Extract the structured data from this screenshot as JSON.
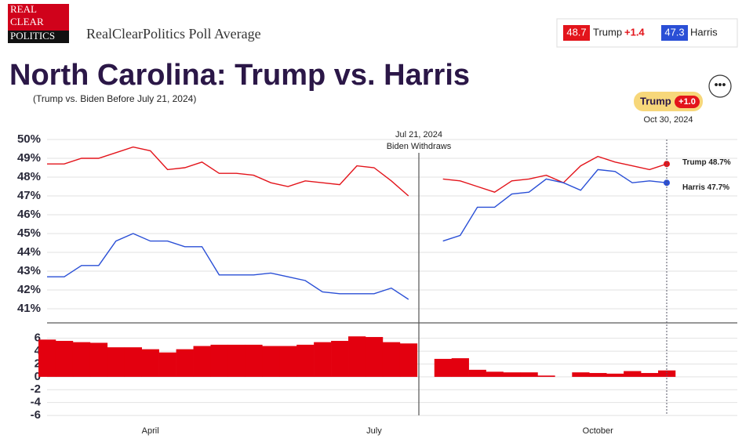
{
  "header": {
    "logo": [
      "REAL",
      "CLEAR",
      "POLITICS"
    ],
    "site": "RealClearPolitics Poll Average",
    "box": {
      "trump_value": "48.7",
      "trump_name": "Trump",
      "trump_spread": "+1.4",
      "harris_value": "47.3",
      "harris_name": "Harris"
    },
    "badge": {
      "name": "Trump",
      "spread": "+1.0",
      "date": "Oct 30, 2024"
    }
  },
  "chart_data": [
    {
      "type": "line",
      "title": "North Carolina: Trump vs. Harris",
      "subtitle": "(Trump vs. Biden Before July 21, 2024)",
      "annotations": [
        "Jul 21, 2024",
        "Biden Withdraws"
      ],
      "end_labels": [
        "Trump 48.7%",
        "Harris 47.7%"
      ],
      "series": [
        {
          "name": "Trump",
          "color": "#e3141b",
          "values": [
            48.7,
            48.7,
            49.0,
            49.0,
            49.3,
            49.6,
            49.4,
            48.4,
            48.5,
            48.8,
            48.2,
            48.2,
            48.1,
            47.7,
            47.5,
            47.8,
            47.7,
            47.6,
            48.6,
            48.5,
            47.8,
            47.0,
            null,
            47.9,
            47.8,
            47.5,
            47.2,
            47.8,
            47.9,
            48.1,
            47.7,
            48.6,
            49.1,
            48.8,
            48.6,
            48.4,
            48.7
          ]
        },
        {
          "name": "Harris",
          "color": "#2a4fd6",
          "values": [
            42.7,
            42.7,
            43.3,
            43.3,
            44.6,
            45.0,
            44.6,
            44.6,
            44.3,
            44.3,
            42.8,
            42.8,
            42.8,
            42.9,
            42.7,
            42.5,
            41.9,
            41.8,
            41.8,
            41.8,
            42.1,
            41.5,
            null,
            44.6,
            44.9,
            46.4,
            46.4,
            47.1,
            47.2,
            47.9,
            47.7,
            47.3,
            48.4,
            48.3,
            47.7,
            47.8,
            47.7
          ]
        }
      ],
      "ylim": [
        40.25,
        50.5
      ],
      "yticks": [
        {
          "value": 41,
          "label": "41%"
        },
        {
          "value": 42,
          "label": "42%"
        },
        {
          "value": 43,
          "label": "43%"
        },
        {
          "value": 44,
          "label": "44%"
        },
        {
          "value": 45,
          "label": "45%"
        },
        {
          "value": 46,
          "label": "46%"
        },
        {
          "value": 47,
          "label": "47%"
        },
        {
          "value": 48,
          "label": "48%"
        },
        {
          "value": 49,
          "label": "49%"
        },
        {
          "value": 50,
          "label": "50%"
        }
      ],
      "grid": true
    },
    {
      "type": "bar",
      "color": "#e3000f",
      "categories": [
        null,
        null,
        null,
        null,
        null,
        null,
        "April",
        null,
        null,
        null,
        null,
        null,
        null,
        null,
        null,
        null,
        null,
        null,
        null,
        "July",
        null,
        null,
        null,
        null,
        null,
        null,
        null,
        null,
        null,
        null,
        null,
        null,
        "October",
        null,
        null,
        null,
        null
      ],
      "values": [
        5.8,
        5.6,
        5.4,
        5.3,
        4.6,
        4.6,
        4.3,
        3.8,
        4.3,
        4.8,
        5.0,
        5.0,
        5.0,
        4.8,
        4.8,
        5.0,
        5.4,
        5.6,
        6.3,
        6.2,
        5.4,
        5.2,
        null,
        2.8,
        2.9,
        1.1,
        0.8,
        0.7,
        0.7,
        0.2,
        0.0,
        0.7,
        0.6,
        0.5,
        0.9,
        0.6,
        1.0
      ],
      "ylim": [
        -6.6,
        8.4
      ],
      "yticks": [
        6,
        4,
        2,
        0,
        -2,
        -4,
        -6
      ],
      "grid": true
    }
  ]
}
